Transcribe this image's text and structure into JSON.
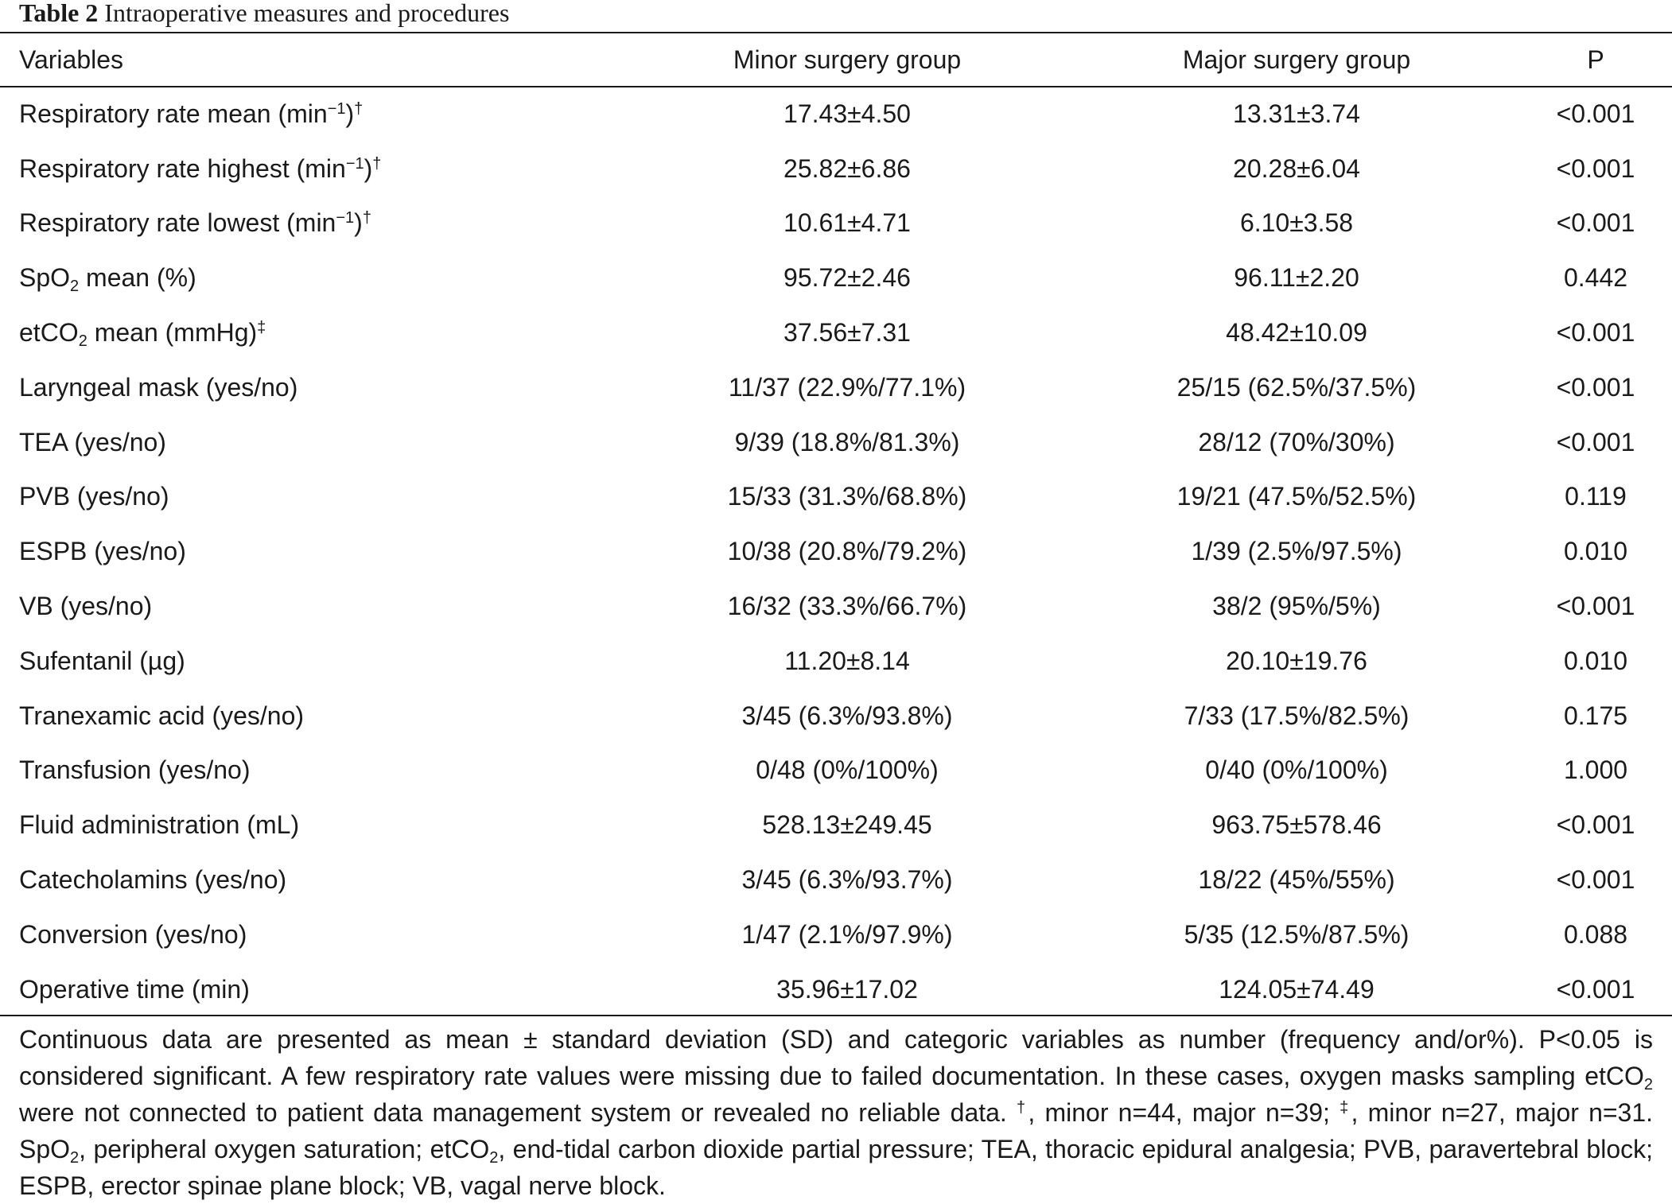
{
  "caption": {
    "label": "Table 2",
    "title": "Intraoperative measures and procedures"
  },
  "columns": [
    "Variables",
    "Minor surgery group",
    "Major surgery group",
    "P"
  ],
  "rows": [
    {
      "variable": {
        "text": "Respiratory rate mean (min",
        "sup": "−1",
        "tail": ")",
        "mark": "†"
      },
      "minor": "17.43±4.50",
      "major": "13.31±3.74",
      "p": "<0.001"
    },
    {
      "variable": {
        "text": "Respiratory rate highest (min",
        "sup": "−1",
        "tail": ")",
        "mark": "†"
      },
      "minor": "25.82±6.86",
      "major": "20.28±6.04",
      "p": "<0.001"
    },
    {
      "variable": {
        "text": "Respiratory rate lowest (min",
        "sup": "−1",
        "tail": ")",
        "mark": "†"
      },
      "minor": "10.61±4.71",
      "major": "6.10±3.58",
      "p": "<0.001"
    },
    {
      "variable": {
        "text": "SpO",
        "sub": "2",
        "tail": " mean (%)"
      },
      "minor": "95.72±2.46",
      "major": "96.11±2.20",
      "p": "0.442"
    },
    {
      "variable": {
        "text": "etCO",
        "sub": "2",
        "tail": " mean (mmHg)",
        "mark": "‡"
      },
      "minor": "37.56±7.31",
      "major": "48.42±10.09",
      "p": "<0.001"
    },
    {
      "variable": {
        "text": "Laryngeal mask (yes/no)"
      },
      "minor": "11/37 (22.9%/77.1%)",
      "major": "25/15 (62.5%/37.5%)",
      "p": "<0.001"
    },
    {
      "variable": {
        "text": "TEA (yes/no)"
      },
      "minor": "9/39 (18.8%/81.3%)",
      "major": "28/12 (70%/30%)",
      "p": "<0.001"
    },
    {
      "variable": {
        "text": "PVB (yes/no)"
      },
      "minor": "15/33 (31.3%/68.8%)",
      "major": "19/21 (47.5%/52.5%)",
      "p": "0.119"
    },
    {
      "variable": {
        "text": "ESPB (yes/no)"
      },
      "minor": "10/38 (20.8%/79.2%)",
      "major": "1/39 (2.5%/97.5%)",
      "p": "0.010"
    },
    {
      "variable": {
        "text": "VB (yes/no)"
      },
      "minor": "16/32 (33.3%/66.7%)",
      "major": "38/2 (95%/5%)",
      "p": "<0.001"
    },
    {
      "variable": {
        "text": "Sufentanil (µg)"
      },
      "minor": "11.20±8.14",
      "major": "20.10±19.76",
      "p": "0.010"
    },
    {
      "variable": {
        "text": "Tranexamic acid (yes/no)"
      },
      "minor": "3/45 (6.3%/93.8%)",
      "major": "7/33 (17.5%/82.5%)",
      "p": "0.175"
    },
    {
      "variable": {
        "text": "Transfusion (yes/no)"
      },
      "minor": "0/48 (0%/100%)",
      "major": "0/40 (0%/100%)",
      "p": "1.000"
    },
    {
      "variable": {
        "text": "Fluid administration (mL)"
      },
      "minor": "528.13±249.45",
      "major": "963.75±578.46",
      "p": "<0.001"
    },
    {
      "variable": {
        "text": "Catecholamins (yes/no)"
      },
      "minor": "3/45 (6.3%/93.7%)",
      "major": "18/22 (45%/55%)",
      "p": "<0.001"
    },
    {
      "variable": {
        "text": "Conversion (yes/no)"
      },
      "minor": "1/47 (2.1%/97.9%)",
      "major": "5/35 (12.5%/87.5%)",
      "p": "0.088"
    },
    {
      "variable": {
        "text": "Operative time (min)"
      },
      "minor": "35.96±17.02",
      "major": "124.05±74.49",
      "p": "<0.001"
    }
  ],
  "footnote": {
    "p1": "Continuous data are presented as mean ± standard deviation (SD) and categoric variables as number (frequency and/or%). P<0.05 is considered significant. A few respiratory rate values were missing due to failed documentation. In these cases, oxygen masks sampling etCO",
    "sub2": "2",
    "p2": " were not connected to patient data management system or revealed no reliable data. ",
    "dagger": "†",
    "p3": ", minor n=44, major n=39; ",
    "ddagger": "‡",
    "p4": ", minor n=27, major n=31. SpO",
    "p5": ", peripheral oxygen saturation; etCO",
    "p6": ", end-tidal carbon dioxide partial pressure; TEA, thoracic epidural analgesia; PVB, paravertebral block; ESPB, erector spinae plane block; VB, vagal nerve block."
  }
}
